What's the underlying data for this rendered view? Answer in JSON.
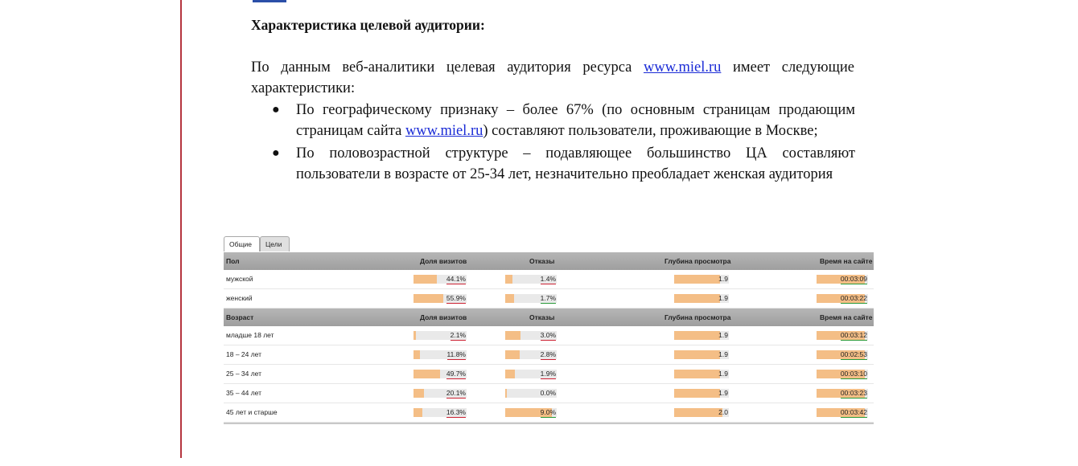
{
  "heading": "Характеристика целевой аудитории:",
  "paragraph": {
    "before_link": "По данным веб-аналитики целевая аудитория ресурса ",
    "link": "www.miel.ru",
    "after_link": " имеет следующие характеристики:"
  },
  "bullets": [
    {
      "before_link": "По географическому признаку – более 67% (по основным страницам продающим страницам сайта ",
      "link": "www.miel.ru",
      "after_link": ") составляют пользователи, проживающие в Москве;"
    },
    {
      "text": "По половозрастной структуре – подавляющее большинство ЦА составляют пользователи в возрасте от 25-34 лет, незначительно преобладает женская аудитория"
    }
  ],
  "widget": {
    "tabs": [
      "Общие",
      "Цели"
    ],
    "columns": [
      "Доля визитов",
      "Отказы",
      "Глубина просмотра",
      "Время на сайте"
    ],
    "sections": [
      {
        "title": "Пол",
        "rows": [
          {
            "label": "мужской",
            "share": "44.1%",
            "share_pct": 44.1,
            "bounce": "1.4%",
            "bounce_pct": 1.4,
            "depth": "1.9",
            "time": "00:03:09",
            "mark": "red"
          },
          {
            "label": "женский",
            "share": "55.9%",
            "share_pct": 55.9,
            "bounce": "1.7%",
            "bounce_pct": 1.7,
            "depth": "1.9",
            "time": "00:03:22",
            "mark": "green"
          }
        ]
      },
      {
        "title": "Возраст",
        "rows": [
          {
            "label": "младше 18 лет",
            "share": "2.1%",
            "share_pct": 2.1,
            "bounce": "3.0%",
            "bounce_pct": 3.0,
            "depth": "1.9",
            "time": "00:03:12",
            "mark": "red"
          },
          {
            "label": "18 – 24 лет",
            "share": "11.8%",
            "share_pct": 11.8,
            "bounce": "2.8%",
            "bounce_pct": 2.8,
            "depth": "1.9",
            "time": "00:02:53",
            "mark": "red"
          },
          {
            "label": "25 – 34 лет",
            "share": "49.7%",
            "share_pct": 49.7,
            "bounce": "1.9%",
            "bounce_pct": 1.9,
            "depth": "1.9",
            "time": "00:03:10",
            "mark": "red"
          },
          {
            "label": "35 – 44 лет",
            "share": "20.1%",
            "share_pct": 20.1,
            "bounce": "0.0%",
            "bounce_pct": 0.0,
            "depth": "1.9",
            "time": "00:03:23",
            "mark": "none"
          },
          {
            "label": "45 лет и старше",
            "share": "16.3%",
            "share_pct": 16.3,
            "bounce": "9.0%",
            "bounce_pct": 9.0,
            "depth": "2.0",
            "time": "00:03:42",
            "mark": "green"
          }
        ]
      }
    ]
  },
  "colors": {
    "bar_fill": "#f4be86",
    "bar_track": "#e9e9e9",
    "link": "#1a2bd6",
    "margin_line": "#b5363f"
  }
}
